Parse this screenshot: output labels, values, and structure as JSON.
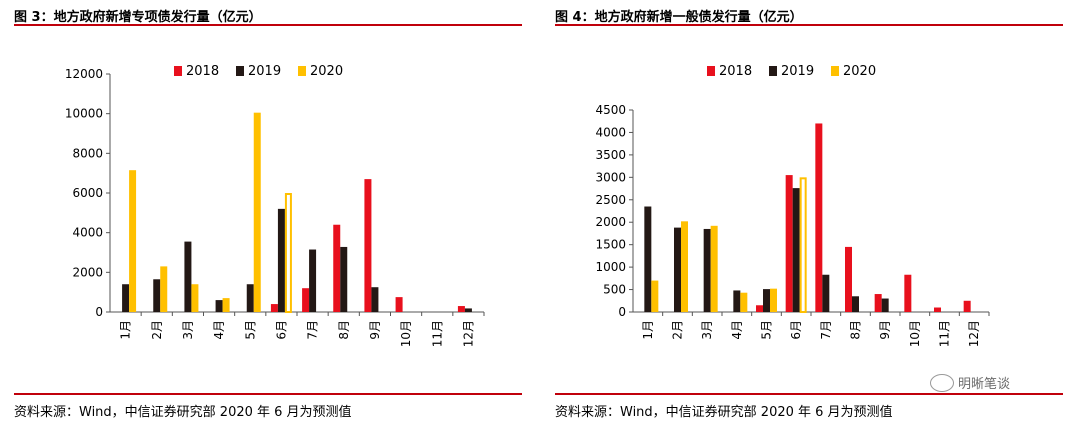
{
  "charts": [
    {
      "title": "图 3：地方政府新增专项债发行量（亿元）",
      "source": "资料来源：Wind，中信证券研究部 2020 年 6 月为预测值"
    },
    {
      "title": "图 4：地方政府新增一般债发行量（亿元）",
      "source": "资料来源：Wind，中信证券研究部 2020 年 6 月为预测值"
    }
  ],
  "watermark": "明晰笔谈",
  "colors": {
    "2018": "#e8101d",
    "2019": "#231815",
    "2020": "#ffc000",
    "rule": "#c0000b"
  },
  "chart_data": [
    {
      "type": "bar",
      "title": "图 3：地方政府新增专项债发行量（亿元）",
      "categories": [
        "1月",
        "2月",
        "3月",
        "4月",
        "5月",
        "6月",
        "7月",
        "8月",
        "9月",
        "10月",
        "11月",
        "12月"
      ],
      "series": [
        {
          "name": "2018",
          "values": [
            0,
            0,
            0,
            0,
            0,
            400,
            1200,
            4400,
            6700,
            750,
            0,
            300
          ]
        },
        {
          "name": "2019",
          "values": [
            1400,
            1650,
            3550,
            600,
            1400,
            5200,
            3150,
            3280,
            1250,
            0,
            0,
            180
          ]
        },
        {
          "name": "2020",
          "values": [
            7150,
            2300,
            1400,
            700,
            10050,
            6000,
            null,
            null,
            null,
            null,
            null,
            null
          ]
        }
      ],
      "forecast": {
        "series": "2020",
        "category": "6月"
      },
      "ylim": [
        0,
        12000
      ],
      "yticks": [
        0,
        2000,
        4000,
        6000,
        8000,
        10000,
        12000
      ],
      "legend": "top"
    },
    {
      "type": "bar",
      "title": "图 4：地方政府新增一般债发行量（亿元）",
      "categories": [
        "1月",
        "2月",
        "3月",
        "4月",
        "5月",
        "6月",
        "7月",
        "8月",
        "9月",
        "10月",
        "11月",
        "12月"
      ],
      "series": [
        {
          "name": "2018",
          "values": [
            0,
            0,
            0,
            0,
            150,
            3050,
            4200,
            1450,
            400,
            830,
            100,
            250
          ]
        },
        {
          "name": "2019",
          "values": [
            2350,
            1880,
            1850,
            480,
            510,
            2760,
            830,
            350,
            300,
            0,
            0,
            0
          ]
        },
        {
          "name": "2020",
          "values": [
            700,
            2020,
            1920,
            430,
            520,
            3000,
            null,
            null,
            null,
            null,
            null,
            null
          ]
        }
      ],
      "forecast": {
        "series": "2020",
        "category": "6月"
      },
      "ylim": [
        0,
        4500
      ],
      "yticks": [
        0,
        500,
        1000,
        1500,
        2000,
        2500,
        3000,
        3500,
        4000,
        4500
      ],
      "legend": "top"
    }
  ]
}
